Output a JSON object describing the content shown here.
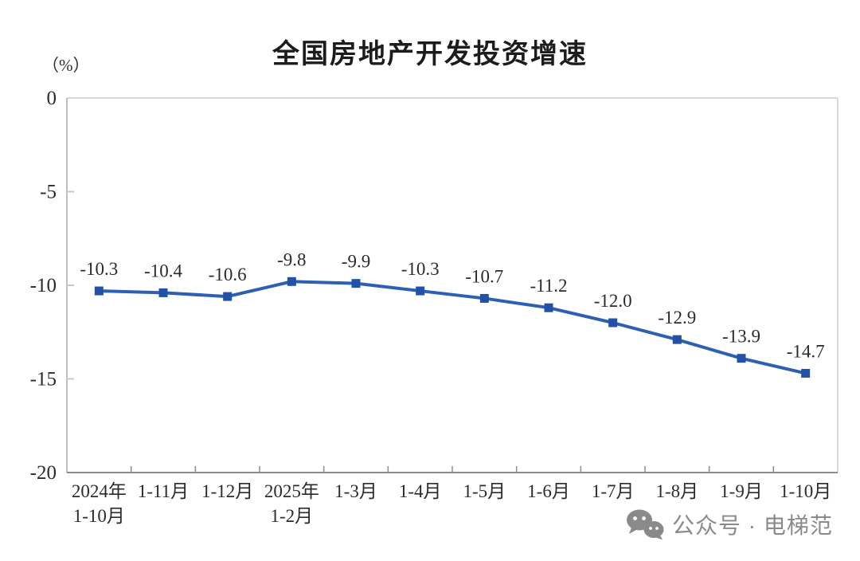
{
  "chart_data": {
    "type": "line",
    "title": "全国房地产开发投资增速",
    "ylabel": "（%）",
    "xlabel": "",
    "ylim": [
      -20,
      0
    ],
    "yticks": [
      0,
      -5,
      -10,
      -15,
      -20
    ],
    "grid": "off",
    "legend": "none",
    "categories": [
      [
        "2024年",
        "1-10月"
      ],
      [
        "1-11月"
      ],
      [
        "1-12月"
      ],
      [
        "2025年",
        "1-2月"
      ],
      [
        "1-3月"
      ],
      [
        "1-4月"
      ],
      [
        "1-5月"
      ],
      [
        "1-6月"
      ],
      [
        "1-7月"
      ],
      [
        "1-8月"
      ],
      [
        "1-9月"
      ],
      [
        "1-10月"
      ]
    ],
    "values": [
      -10.3,
      -10.4,
      -10.6,
      -9.8,
      -9.9,
      -10.3,
      -10.7,
      -11.2,
      -12.0,
      -12.9,
      -13.9,
      -14.7
    ],
    "labels": [
      "-10.3",
      "-10.4",
      "-10.6",
      "-9.8",
      "-9.9",
      "-10.3",
      "-10.7",
      "-11.2",
      "-12.0",
      "-12.9",
      "-13.9",
      "-14.7"
    ],
    "series_color": "#2d5fb3",
    "marker_color": "#2152a8",
    "axis_colors": {
      "top": "#d9d9d9",
      "right": "#d9d9d9",
      "left": "#bfbfbf",
      "bottom": "#8c8c8c",
      "ytick": "#c9c9c9"
    }
  },
  "watermark": {
    "icon": "wechat-icon",
    "text": "公众号 · 电梯范",
    "color": "#8a8a8a"
  }
}
